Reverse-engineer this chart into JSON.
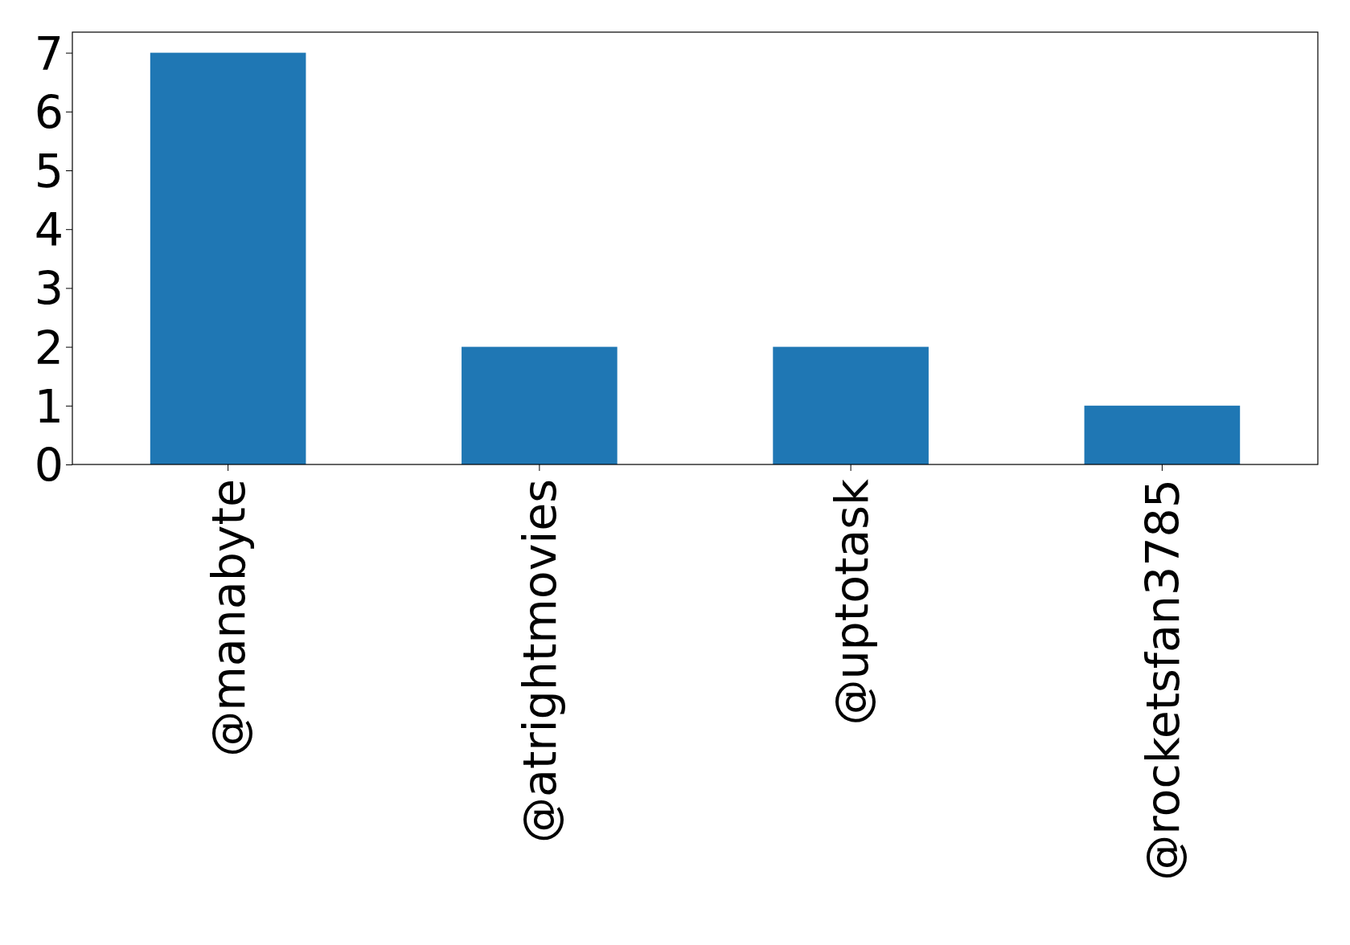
{
  "chart_data": {
    "type": "bar",
    "categories": [
      "@manabyte",
      "@atrightmovies",
      "@uptotask",
      "@rocketsfan3785"
    ],
    "values": [
      7,
      2,
      2,
      1
    ],
    "color": "#1f77b4",
    "ylim": [
      0,
      7.35
    ],
    "yticks": [
      0,
      1,
      2,
      3,
      4,
      5,
      6,
      7
    ],
    "grid": false
  }
}
